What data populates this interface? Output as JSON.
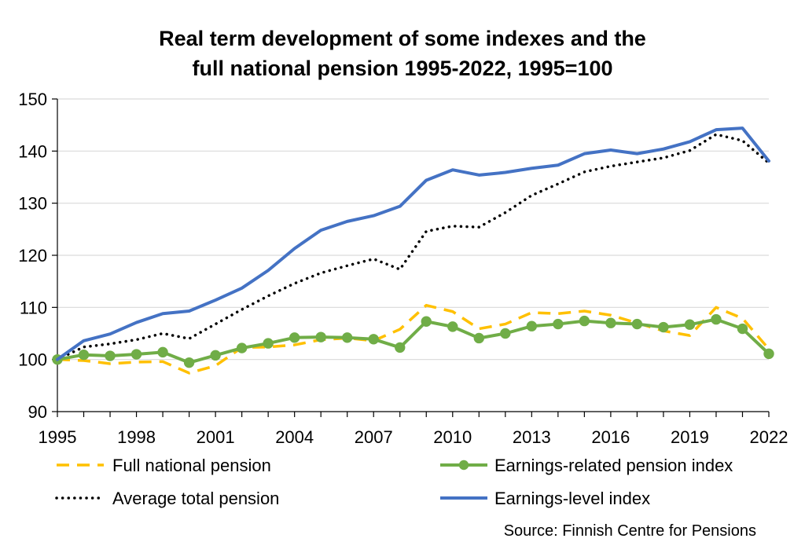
{
  "chart_data": {
    "type": "line",
    "title_lines": [
      "Real term development of some indexes and the",
      "full national pension 1995-2022, 1995=100"
    ],
    "source": "Source: Finnish Centre for Pensions",
    "xlabel": "",
    "ylabel": "",
    "xlim": [
      1995,
      2022
    ],
    "ylim": [
      90,
      150
    ],
    "x_ticks": [
      "1995",
      "1998",
      "2001",
      "2004",
      "2007",
      "2010",
      "2013",
      "2016",
      "2019",
      "2022"
    ],
    "y_ticks": [
      "90",
      "100",
      "110",
      "120",
      "130",
      "140",
      "150"
    ],
    "grid": true,
    "legend_position": "bottom",
    "x": [
      1995,
      1996,
      1997,
      1998,
      1999,
      2000,
      2001,
      2002,
      2003,
      2004,
      2005,
      2006,
      2007,
      2008,
      2009,
      2010,
      2011,
      2012,
      2013,
      2014,
      2015,
      2016,
      2017,
      2018,
      2019,
      2020,
      2021,
      2022
    ],
    "series": [
      {
        "name": "Full national pension",
        "style": "dashed",
        "color": "#FFC000",
        "values": [
          100,
          99.8,
          99.2,
          99.5,
          99.6,
          97.4,
          98.8,
          102.3,
          102.4,
          102.8,
          103.8,
          104.1,
          103.6,
          105.8,
          110.4,
          109.2,
          105.9,
          106.8,
          109.0,
          108.8,
          109.3,
          108.5,
          107.0,
          105.5,
          104.6,
          110.0,
          107.9,
          102.0
        ]
      },
      {
        "name": "Earnings-related pension index",
        "style": "solid-markers",
        "color": "#70AD47",
        "values": [
          100,
          100.9,
          100.7,
          101.0,
          101.4,
          99.4,
          100.8,
          102.2,
          103.1,
          104.2,
          104.3,
          104.2,
          103.9,
          102.3,
          107.3,
          106.3,
          104.1,
          105.0,
          106.4,
          106.8,
          107.4,
          107.0,
          106.8,
          106.2,
          106.7,
          107.7,
          105.9,
          101.1
        ]
      },
      {
        "name": "Average total pension",
        "style": "dotted",
        "color": "#000000",
        "values": [
          100,
          102.4,
          103.0,
          103.8,
          105.0,
          104.0,
          106.8,
          109.6,
          112.2,
          114.6,
          116.6,
          118.0,
          119.3,
          117.3,
          124.6,
          125.6,
          125.4,
          128.2,
          131.5,
          133.7,
          136.0,
          137.1,
          137.9,
          138.7,
          140.1,
          143.2,
          142.0,
          137.7
        ]
      },
      {
        "name": "Earnings-level index",
        "style": "solid",
        "color": "#4472C4",
        "values": [
          100,
          103.6,
          104.9,
          107.1,
          108.8,
          109.3,
          111.4,
          113.7,
          117.1,
          121.3,
          124.8,
          126.5,
          127.6,
          129.4,
          134.4,
          136.4,
          135.4,
          135.9,
          136.7,
          137.3,
          139.5,
          140.2,
          139.5,
          140.4,
          141.8,
          144.1,
          144.4,
          138.1
        ]
      }
    ]
  }
}
